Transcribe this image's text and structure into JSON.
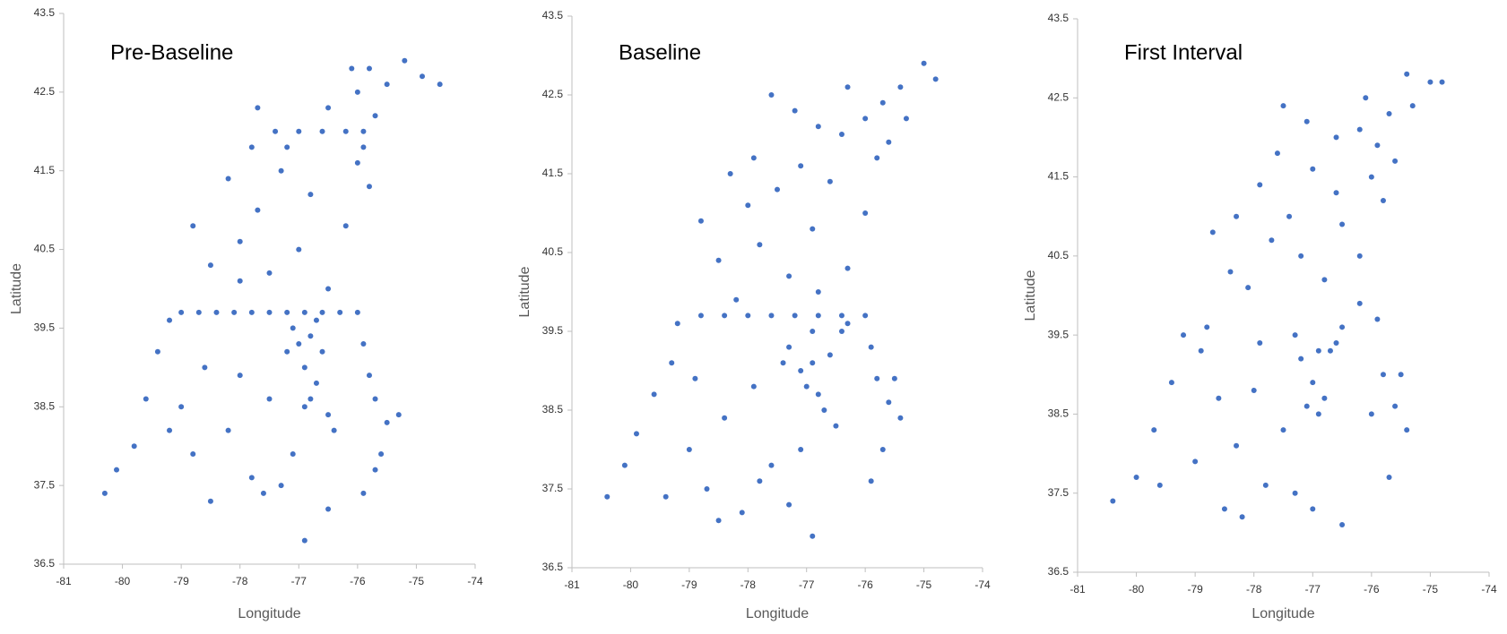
{
  "chart_data": [
    {
      "type": "scatter",
      "title": "Pre-Baseline",
      "x_label": "Longitude",
      "y_label": "Latitude",
      "color": "#4472c4",
      "xlim": [
        -81,
        -74
      ],
      "ylim": [
        36.5,
        43.5
      ],
      "xticks": [
        -81,
        -80,
        -79,
        -78,
        -77,
        -76,
        -75,
        -74
      ],
      "yticks": [
        36.5,
        37.5,
        38.5,
        39.5,
        40.5,
        41.5,
        42.5,
        43.5
      ],
      "x": [
        -80.3,
        -80.1,
        -79.8,
        -79.6,
        -79.4,
        -79.2,
        -79.0,
        -78.7,
        -78.4,
        -78.1,
        -77.8,
        -77.5,
        -77.2,
        -76.9,
        -76.6,
        -76.3,
        -76.0,
        -79.0,
        -78.8,
        -78.5,
        -78.2,
        -78.0,
        -77.8,
        -77.6,
        -77.3,
        -77.1,
        -76.9,
        -76.5,
        -78.6,
        -79.2,
        -77.5,
        -77.0,
        -76.9,
        -76.8,
        -76.7,
        -76.9,
        -77.1,
        -76.6,
        -76.5,
        -76.4,
        -77.2,
        -76.7,
        -76.8,
        -75.9,
        -75.8,
        -75.7,
        -75.5,
        -75.3,
        -75.6,
        -75.9,
        -75.7,
        -78.8,
        -78.5,
        -78.2,
        -78.0,
        -77.7,
        -77.5,
        -77.3,
        -77.0,
        -76.8,
        -76.5,
        -76.2,
        -76.0,
        -75.8,
        -77.8,
        -78.0,
        -77.7,
        -77.4,
        -77.0,
        -76.6,
        -76.2,
        -75.9,
        -77.2,
        -76.5,
        -76.0,
        -75.7,
        -75.8,
        -75.5,
        -75.2,
        -74.9,
        -74.6,
        -76.1,
        -75.9
      ],
      "y": [
        37.4,
        37.7,
        38.0,
        38.6,
        39.2,
        39.6,
        39.7,
        39.7,
        39.7,
        39.7,
        39.7,
        39.7,
        39.7,
        39.7,
        39.7,
        39.7,
        39.7,
        38.5,
        37.9,
        37.3,
        38.2,
        38.9,
        37.6,
        37.4,
        37.5,
        37.9,
        36.8,
        37.2,
        39.0,
        38.2,
        38.6,
        39.3,
        39.0,
        39.4,
        38.8,
        38.5,
        39.5,
        39.2,
        38.4,
        38.2,
        39.2,
        39.6,
        38.6,
        39.3,
        38.9,
        38.6,
        38.3,
        38.4,
        37.9,
        37.4,
        37.7,
        40.8,
        40.3,
        41.4,
        40.6,
        41.0,
        40.2,
        41.5,
        40.5,
        41.2,
        40.0,
        40.8,
        41.6,
        41.3,
        41.8,
        40.1,
        42.3,
        42.0,
        42.0,
        42.0,
        42.0,
        42.0,
        41.8,
        42.3,
        42.5,
        42.2,
        42.8,
        42.6,
        42.9,
        42.7,
        42.6,
        42.8,
        41.8
      ]
    },
    {
      "type": "scatter",
      "title": "Baseline",
      "x_label": "Longitude",
      "y_label": "Latitude",
      "color": "#4472c4",
      "xlim": [
        -81,
        -74
      ],
      "ylim": [
        36.5,
        43.5
      ],
      "xticks": [
        -81,
        -80,
        -79,
        -78,
        -77,
        -76,
        -75,
        -74
      ],
      "yticks": [
        36.5,
        37.5,
        38.5,
        39.5,
        40.5,
        41.5,
        42.5,
        43.5
      ],
      "x": [
        -80.4,
        -80.1,
        -79.9,
        -79.6,
        -79.3,
        -79.2,
        -78.8,
        -78.4,
        -78.0,
        -77.6,
        -77.2,
        -76.8,
        -76.4,
        -76.0,
        -79.4,
        -79.0,
        -78.7,
        -78.4,
        -78.1,
        -77.9,
        -77.6,
        -77.3,
        -77.1,
        -76.9,
        -78.9,
        -78.5,
        -77.8,
        -77.3,
        -77.1,
        -76.9,
        -76.8,
        -76.6,
        -76.4,
        -76.7,
        -76.5,
        -77.0,
        -76.3,
        -77.4,
        -76.9,
        -75.9,
        -75.8,
        -75.6,
        -75.4,
        -75.7,
        -75.9,
        -75.5,
        -78.8,
        -78.5,
        -78.3,
        -78.0,
        -77.8,
        -77.5,
        -77.3,
        -77.1,
        -76.9,
        -76.6,
        -76.3,
        -76.0,
        -75.8,
        -77.9,
        -78.2,
        -76.8,
        -77.6,
        -77.2,
        -76.8,
        -76.4,
        -76.0,
        -75.7,
        -75.4,
        -75.0,
        -74.8,
        -75.3,
        -76.3,
        -75.6
      ],
      "y": [
        37.4,
        37.8,
        38.2,
        38.7,
        39.1,
        39.6,
        39.7,
        39.7,
        39.7,
        39.7,
        39.7,
        39.7,
        39.7,
        39.7,
        37.4,
        38.0,
        37.5,
        38.4,
        37.2,
        38.8,
        37.8,
        37.3,
        38.0,
        36.9,
        38.9,
        37.1,
        37.6,
        39.3,
        39.0,
        39.5,
        38.7,
        39.2,
        39.5,
        38.5,
        38.3,
        38.8,
        39.6,
        39.1,
        39.1,
        39.3,
        38.9,
        38.6,
        38.4,
        38.0,
        37.6,
        38.9,
        40.9,
        40.4,
        41.5,
        41.1,
        40.6,
        41.3,
        40.2,
        41.6,
        40.8,
        41.4,
        40.3,
        41.0,
        41.7,
        41.7,
        39.9,
        40.0,
        42.5,
        42.3,
        42.1,
        42.0,
        42.2,
        42.4,
        42.6,
        42.9,
        42.7,
        42.2,
        42.6,
        41.9
      ]
    },
    {
      "type": "scatter",
      "title": "First Interval",
      "x_label": "Longitude",
      "y_label": "Latitude",
      "color": "#4472c4",
      "xlim": [
        -81,
        -74
      ],
      "ylim": [
        36.5,
        43.5
      ],
      "xticks": [
        -81,
        -80,
        -79,
        -78,
        -77,
        -76,
        -75,
        -74
      ],
      "yticks": [
        36.5,
        37.5,
        38.5,
        39.5,
        40.5,
        41.5,
        42.5,
        43.5
      ],
      "x": [
        -80.4,
        -80.0,
        -79.7,
        -79.4,
        -79.2,
        -78.9,
        -78.6,
        -78.3,
        -78.5,
        -78.2,
        -77.8,
        -77.5,
        -77.3,
        -77.0,
        -76.5,
        -79.0,
        -78.8,
        -78.0,
        -77.9,
        -79.6,
        -77.2,
        -77.0,
        -76.9,
        -76.8,
        -77.1,
        -76.6,
        -76.5,
        -76.7,
        -76.9,
        -77.3,
        -76.2,
        -75.9,
        -75.8,
        -75.6,
        -75.4,
        -75.7,
        -76.0,
        -75.5,
        -78.7,
        -78.4,
        -78.1,
        -77.9,
        -77.6,
        -77.4,
        -77.2,
        -77.0,
        -76.8,
        -76.5,
        -76.2,
        -76.0,
        -75.8,
        -78.3,
        -77.7,
        -76.6,
        -77.5,
        -77.1,
        -76.6,
        -76.2,
        -75.9,
        -75.7,
        -75.4,
        -75.0,
        -74.8,
        -75.3,
        -76.1,
        -75.6
      ],
      "y": [
        37.4,
        37.7,
        38.3,
        38.9,
        39.5,
        39.3,
        38.7,
        38.1,
        37.3,
        37.2,
        37.6,
        38.3,
        37.5,
        37.3,
        37.1,
        37.9,
        39.6,
        38.8,
        39.4,
        37.6,
        39.2,
        38.9,
        39.3,
        38.7,
        38.6,
        39.4,
        39.6,
        39.3,
        38.5,
        39.5,
        39.9,
        39.7,
        39.0,
        38.6,
        38.3,
        37.7,
        38.5,
        39.0,
        40.8,
        40.3,
        40.1,
        41.4,
        41.8,
        41.0,
        40.5,
        41.6,
        40.2,
        40.9,
        40.5,
        41.5,
        41.2,
        41.0,
        40.7,
        41.3,
        42.4,
        42.2,
        42.0,
        42.1,
        41.9,
        42.3,
        42.8,
        42.7,
        42.7,
        42.4,
        42.5,
        41.7
      ]
    }
  ]
}
